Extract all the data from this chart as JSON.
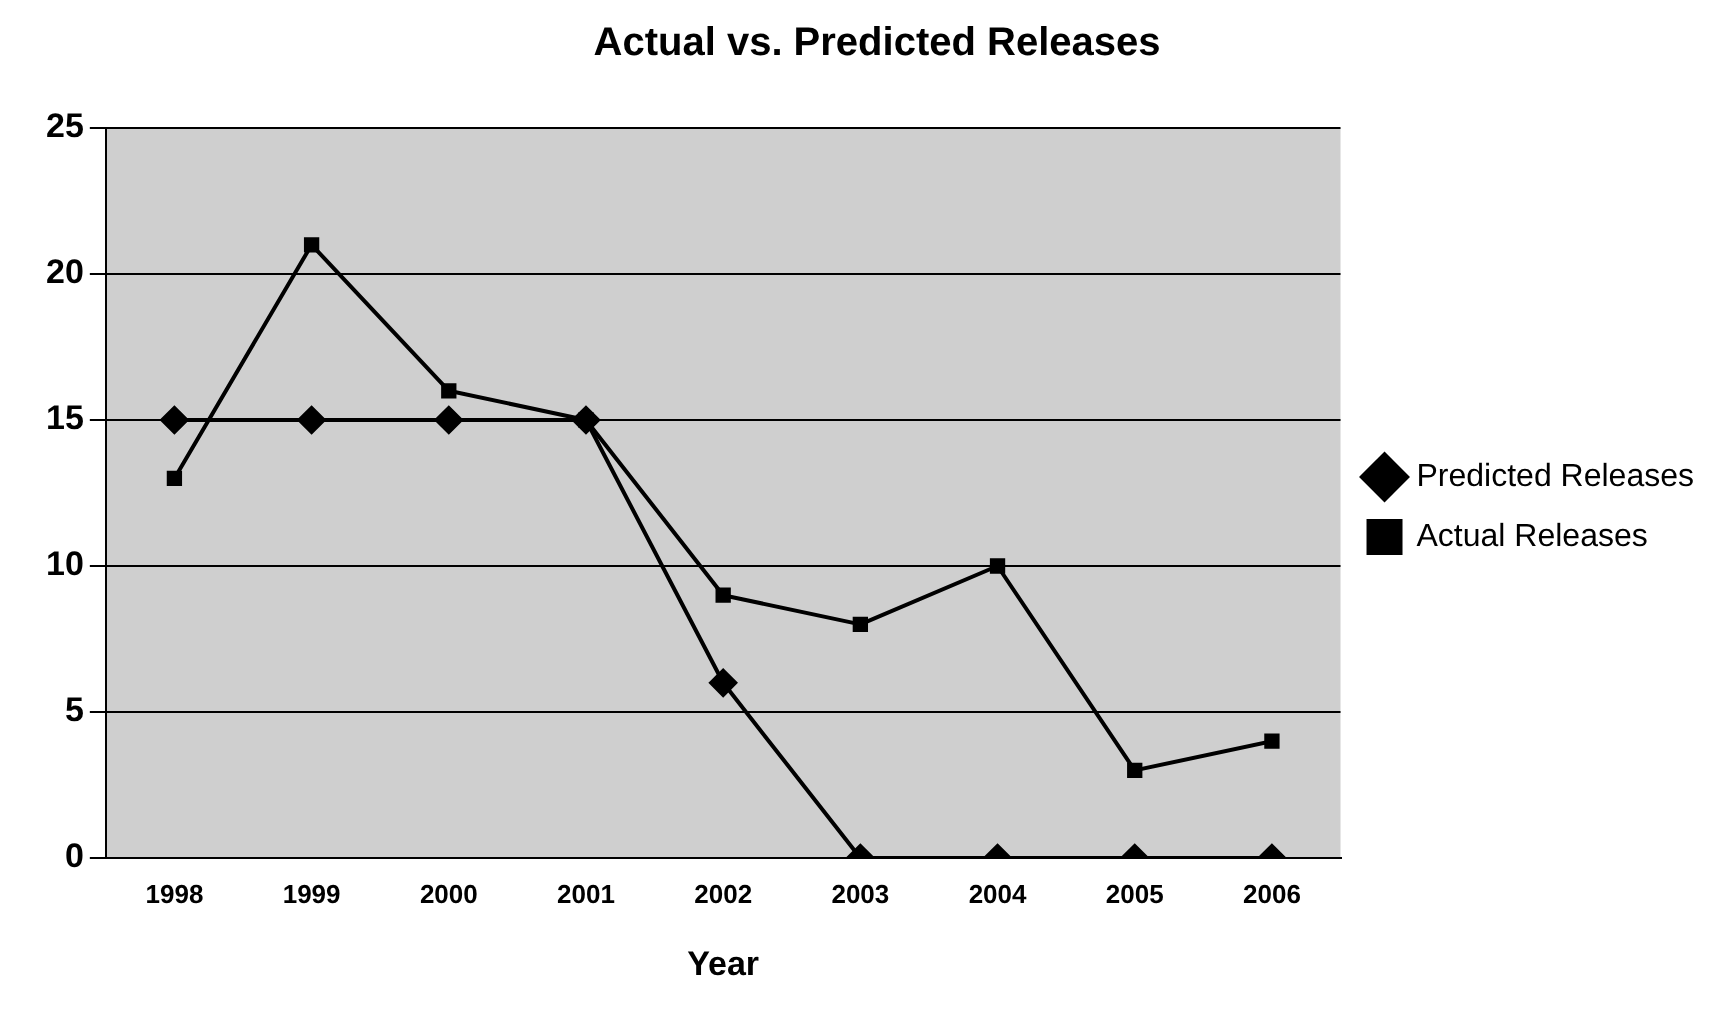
{
  "chart_data": {
    "type": "line",
    "title": "Actual vs. Predicted Releases",
    "xlabel": "Year",
    "categories": [
      "1998",
      "1999",
      "2000",
      "2001",
      "2002",
      "2003",
      "2004",
      "2005",
      "2006"
    ],
    "series": [
      {
        "name": "Predicted Releases",
        "color": "#000000",
        "marker": "diamond",
        "values": [
          15,
          15,
          15,
          15,
          6,
          0,
          0,
          0,
          0
        ]
      },
      {
        "name": "Actual Releases",
        "color": "#000000",
        "marker": "square",
        "values": [
          13,
          21,
          16,
          15,
          9,
          8,
          10,
          3,
          4
        ]
      }
    ],
    "ylim": [
      0,
      25
    ],
    "yticks": [
      0,
      5,
      10,
      15,
      20,
      25
    ],
    "grid": "y",
    "legend": "right"
  }
}
